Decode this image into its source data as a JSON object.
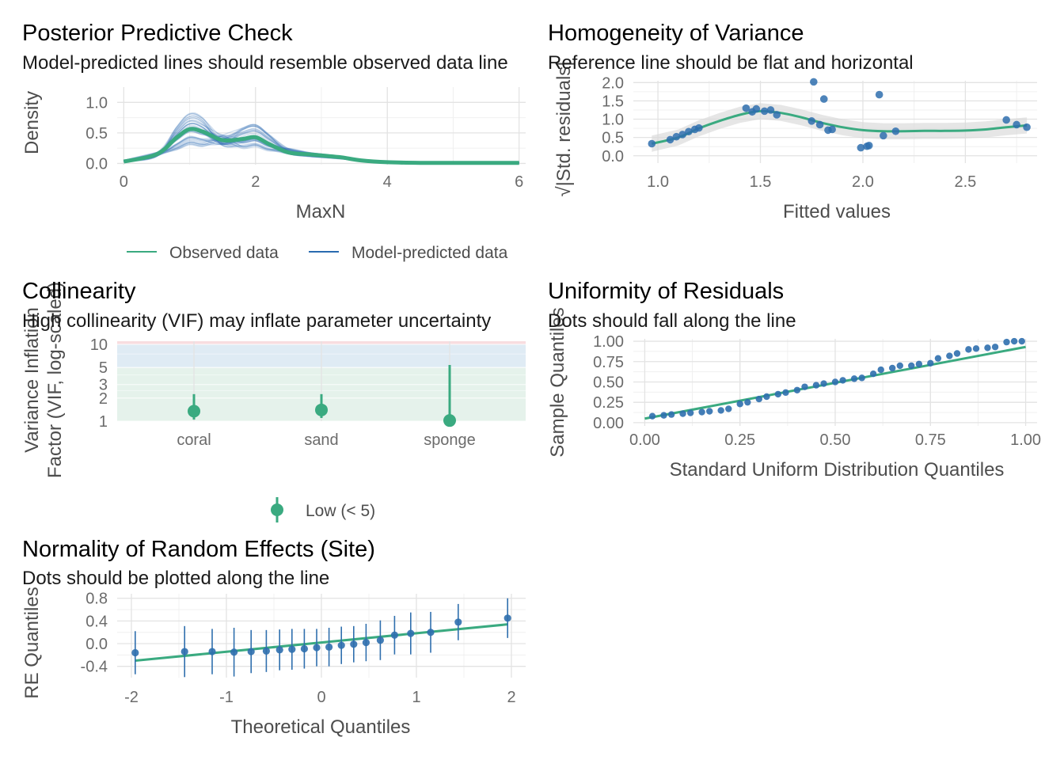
{
  "colors": {
    "observed": "#3aaa80",
    "predicted": "#2a6bb0",
    "points": "#2f6fae",
    "band": "#d9d9d9",
    "zone_low": "#d3eade",
    "zone_moderate": "#d2e2ef",
    "zone_high": "#f6d4d8"
  },
  "chart_data": [
    {
      "id": "ppc",
      "type": "line",
      "title": "Posterior Predictive Check",
      "subtitle": "Model-predicted lines should resemble observed data line",
      "xlabel": "MaxN",
      "ylabel": "Density",
      "xlim": [
        -0.1,
        6.1
      ],
      "ylim": [
        -0.02,
        1.25
      ],
      "xticks": [
        "0",
        "2",
        "4",
        "6"
      ],
      "yticks": [
        "0.0",
        "0.5",
        "1.0"
      ],
      "legend_position": "bottom",
      "series": [
        {
          "name": "Observed data",
          "x": [
            0,
            0.5,
            0.8,
            1.0,
            1.2,
            1.5,
            1.8,
            2.0,
            2.2,
            2.5,
            2.8,
            3.0,
            3.3,
            3.6,
            4.0,
            4.5,
            5.0,
            6.0
          ],
          "y": [
            0.03,
            0.15,
            0.42,
            0.56,
            0.52,
            0.38,
            0.4,
            0.43,
            0.32,
            0.18,
            0.15,
            0.13,
            0.1,
            0.05,
            0.02,
            0.01,
            0.01,
            0.01
          ]
        },
        {
          "name": "Model-predicted data",
          "x": [
            0,
            0.5,
            0.8,
            1.0,
            1.2,
            1.5,
            1.8,
            2.0,
            2.2,
            2.5,
            2.8,
            3.0,
            3.3,
            3.6,
            4.0,
            4.5,
            5.0,
            6.0
          ],
          "y": [
            0.04,
            0.14,
            0.4,
            0.55,
            0.5,
            0.36,
            0.4,
            0.44,
            0.33,
            0.19,
            0.14,
            0.12,
            0.09,
            0.05,
            0.02,
            0.01,
            0.01,
            0.01
          ]
        }
      ]
    },
    {
      "id": "homogeneity",
      "type": "scatter",
      "title": "Homogeneity of Variance",
      "subtitle": "Reference line should be flat and horizontal",
      "xlabel": "Fitted values",
      "ylabel": "√|Std. residuals|",
      "xlim": [
        0.88,
        2.85
      ],
      "ylim": [
        -0.2,
        2.05
      ],
      "xticks": [
        "1.0",
        "1.5",
        "2.0",
        "2.5"
      ],
      "yticks": [
        "0.0",
        "0.5",
        "1.0",
        "1.5",
        "2.0"
      ],
      "points": [
        [
          0.97,
          0.33
        ],
        [
          1.06,
          0.44
        ],
        [
          1.09,
          0.52
        ],
        [
          1.12,
          0.58
        ],
        [
          1.15,
          0.66
        ],
        [
          1.18,
          0.72
        ],
        [
          1.2,
          0.76
        ],
        [
          1.43,
          1.3
        ],
        [
          1.46,
          1.2
        ],
        [
          1.48,
          1.28
        ],
        [
          1.52,
          1.22
        ],
        [
          1.55,
          1.25
        ],
        [
          1.58,
          1.12
        ],
        [
          1.75,
          0.95
        ],
        [
          1.76,
          2.02
        ],
        [
          1.79,
          0.85
        ],
        [
          1.81,
          1.55
        ],
        [
          1.83,
          0.7
        ],
        [
          1.85,
          0.72
        ],
        [
          1.99,
          0.22
        ],
        [
          2.02,
          0.26
        ],
        [
          2.03,
          0.28
        ],
        [
          2.08,
          1.67
        ],
        [
          2.1,
          0.55
        ],
        [
          2.16,
          0.67
        ],
        [
          2.7,
          0.98
        ],
        [
          2.75,
          0.85
        ],
        [
          2.8,
          0.78
        ]
      ],
      "smooth": {
        "x": [
          0.97,
          1.1,
          1.2,
          1.3,
          1.4,
          1.5,
          1.6,
          1.7,
          1.8,
          1.9,
          2.0,
          2.1,
          2.2,
          2.3,
          2.4,
          2.5,
          2.6,
          2.7,
          2.8
        ],
        "y": [
          0.33,
          0.5,
          0.75,
          0.95,
          1.12,
          1.22,
          1.17,
          1.05,
          0.9,
          0.78,
          0.7,
          0.67,
          0.67,
          0.68,
          0.68,
          0.69,
          0.72,
          0.78,
          0.83
        ]
      }
    },
    {
      "id": "collinearity",
      "type": "scatter",
      "title": "Collinearity",
      "subtitle": "High collinearity (VIF) may inflate parameter uncertainty",
      "xlabel": "",
      "ylabel": "Variance Inflation Factor (VIF, log-scaled)",
      "scale": "log",
      "ylim": [
        1,
        11
      ],
      "yticks": [
        "1",
        "2",
        "3",
        "5",
        "10"
      ],
      "categories": [
        "coral",
        "sand",
        "sponge"
      ],
      "values": [
        1.35,
        1.4,
        1.02
      ],
      "upper": [
        2.25,
        2.25,
        5.4
      ],
      "legend": [
        "Low (< 5)"
      ],
      "legend_position": "bottom"
    },
    {
      "id": "uniformity",
      "type": "scatter",
      "title": "Uniformity of Residuals",
      "subtitle": "Dots should fall along the line",
      "xlabel": "Standard Uniform Distribution Quantiles",
      "ylabel": "Sample Quantiles",
      "xlim": [
        -0.03,
        1.03
      ],
      "ylim": [
        -0.04,
        1.03
      ],
      "xticks": [
        "0.00",
        "0.25",
        "0.50",
        "0.75",
        "1.00"
      ],
      "yticks": [
        "0.00",
        "0.25",
        "0.50",
        "0.75",
        "1.00"
      ],
      "points": [
        [
          0.02,
          0.08
        ],
        [
          0.05,
          0.09
        ],
        [
          0.07,
          0.1
        ],
        [
          0.1,
          0.11
        ],
        [
          0.12,
          0.12
        ],
        [
          0.15,
          0.13
        ],
        [
          0.17,
          0.14
        ],
        [
          0.2,
          0.15
        ],
        [
          0.22,
          0.17
        ],
        [
          0.25,
          0.23
        ],
        [
          0.27,
          0.25
        ],
        [
          0.3,
          0.29
        ],
        [
          0.32,
          0.32
        ],
        [
          0.35,
          0.35
        ],
        [
          0.37,
          0.37
        ],
        [
          0.4,
          0.4
        ],
        [
          0.42,
          0.44
        ],
        [
          0.45,
          0.46
        ],
        [
          0.47,
          0.48
        ],
        [
          0.5,
          0.5
        ],
        [
          0.52,
          0.52
        ],
        [
          0.55,
          0.54
        ],
        [
          0.57,
          0.55
        ],
        [
          0.6,
          0.6
        ],
        [
          0.62,
          0.65
        ],
        [
          0.65,
          0.67
        ],
        [
          0.67,
          0.7
        ],
        [
          0.7,
          0.7
        ],
        [
          0.72,
          0.72
        ],
        [
          0.75,
          0.73
        ],
        [
          0.77,
          0.79
        ],
        [
          0.8,
          0.82
        ],
        [
          0.82,
          0.85
        ],
        [
          0.85,
          0.9
        ],
        [
          0.87,
          0.91
        ],
        [
          0.9,
          0.92
        ],
        [
          0.92,
          0.93
        ],
        [
          0.95,
          0.99
        ],
        [
          0.97,
          1.0
        ],
        [
          0.99,
          1.0
        ]
      ],
      "line": [
        [
          0.0,
          0.05
        ],
        [
          1.0,
          0.93
        ]
      ]
    },
    {
      "id": "random_effects",
      "type": "scatter",
      "title": "Normality of Random Effects (Site)",
      "subtitle": "Dots should be plotted along the line",
      "xlabel": "Theoretical Quantiles",
      "ylabel": "RE Quantiles",
      "xlim": [
        -2.15,
        2.15
      ],
      "ylim": [
        -0.6,
        0.88
      ],
      "xticks": [
        "-2",
        "-1",
        "0",
        "1",
        "2"
      ],
      "yticks": [
        "-0.4",
        "0.0",
        "0.4",
        "0.8"
      ],
      "points": [
        [
          -1.96,
          -0.16,
          0.38
        ],
        [
          -1.44,
          -0.14,
          0.45
        ],
        [
          -1.15,
          -0.14,
          0.4
        ],
        [
          -0.92,
          -0.15,
          0.43
        ],
        [
          -0.74,
          -0.14,
          0.38
        ],
        [
          -0.58,
          -0.13,
          0.37
        ],
        [
          -0.44,
          -0.11,
          0.36
        ],
        [
          -0.31,
          -0.1,
          0.36
        ],
        [
          -0.18,
          -0.09,
          0.35
        ],
        [
          -0.05,
          -0.07,
          0.33
        ],
        [
          0.08,
          -0.06,
          0.34
        ],
        [
          0.21,
          -0.03,
          0.33
        ],
        [
          0.34,
          -0.01,
          0.32
        ],
        [
          0.47,
          0.02,
          0.33
        ],
        [
          0.62,
          0.06,
          0.35
        ],
        [
          0.77,
          0.15,
          0.34
        ],
        [
          0.94,
          0.18,
          0.37
        ],
        [
          1.15,
          0.2,
          0.36
        ],
        [
          1.44,
          0.38,
          0.32
        ],
        [
          1.96,
          0.45,
          0.35
        ]
      ],
      "line": [
        [
          -1.96,
          -0.3
        ],
        [
          1.96,
          0.34
        ]
      ]
    }
  ]
}
